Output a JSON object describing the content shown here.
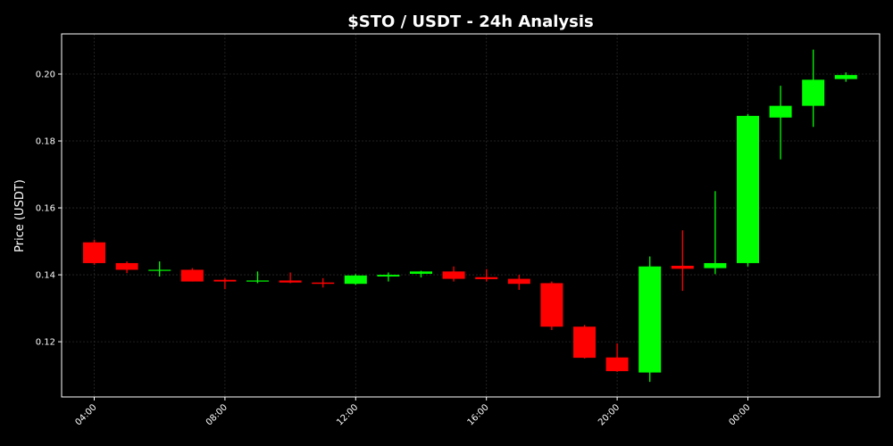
{
  "chart_data": {
    "type": "candlestick",
    "title": "$STO / USDT - 24h Analysis",
    "ylabel": "Price (USDT)",
    "xlabel": "",
    "grid": true,
    "ylim": [
      0.1035,
      0.212
    ],
    "y_ticks": [
      0.12,
      0.14,
      0.16,
      0.18,
      0.2
    ],
    "y_tick_labels": [
      "0.12",
      "0.14",
      "0.16",
      "0.18",
      "0.20"
    ],
    "x_ticks": [
      0,
      4,
      8,
      12,
      16,
      20
    ],
    "x_tick_labels": [
      "04:00",
      "08:00",
      "12:00",
      "16:00",
      "20:00",
      "00:00"
    ],
    "up_color": "#00ff00",
    "down_color": "#ff0000",
    "candles": [
      {
        "time": "04:00",
        "open": 0.1497,
        "high": 0.1505,
        "low": 0.143,
        "close": 0.1435
      },
      {
        "time": "05:00",
        "open": 0.1435,
        "high": 0.144,
        "low": 0.1405,
        "close": 0.1415
      },
      {
        "time": "06:00",
        "open": 0.1412,
        "high": 0.144,
        "low": 0.1395,
        "close": 0.1415
      },
      {
        "time": "07:00",
        "open": 0.1415,
        "high": 0.142,
        "low": 0.138,
        "close": 0.138
      },
      {
        "time": "08:00",
        "open": 0.1385,
        "high": 0.139,
        "low": 0.1357,
        "close": 0.138
      },
      {
        "time": "09:00",
        "open": 0.138,
        "high": 0.141,
        "low": 0.1375,
        "close": 0.1383
      },
      {
        "time": "10:00",
        "open": 0.1383,
        "high": 0.1407,
        "low": 0.1375,
        "close": 0.1377
      },
      {
        "time": "11:00",
        "open": 0.1377,
        "high": 0.139,
        "low": 0.1362,
        "close": 0.1373
      },
      {
        "time": "12:00",
        "open": 0.1373,
        "high": 0.1402,
        "low": 0.137,
        "close": 0.1398
      },
      {
        "time": "13:00",
        "open": 0.1395,
        "high": 0.1407,
        "low": 0.138,
        "close": 0.14
      },
      {
        "time": "14:00",
        "open": 0.1403,
        "high": 0.1412,
        "low": 0.1392,
        "close": 0.141
      },
      {
        "time": "15:00",
        "open": 0.141,
        "high": 0.1425,
        "low": 0.138,
        "close": 0.1388
      },
      {
        "time": "16:00",
        "open": 0.1393,
        "high": 0.1417,
        "low": 0.138,
        "close": 0.1387
      },
      {
        "time": "17:00",
        "open": 0.1388,
        "high": 0.14,
        "low": 0.1355,
        "close": 0.1373
      },
      {
        "time": "18:00",
        "open": 0.1375,
        "high": 0.138,
        "low": 0.1235,
        "close": 0.1245
      },
      {
        "time": "19:00",
        "open": 0.1245,
        "high": 0.125,
        "low": 0.115,
        "close": 0.1152
      },
      {
        "time": "20:00",
        "open": 0.1153,
        "high": 0.1195,
        "low": 0.111,
        "close": 0.1112
      },
      {
        "time": "21:00",
        "open": 0.1108,
        "high": 0.1455,
        "low": 0.108,
        "close": 0.1425
      },
      {
        "time": "22:00",
        "open": 0.1427,
        "high": 0.1533,
        "low": 0.1352,
        "close": 0.1418
      },
      {
        "time": "23:00",
        "open": 0.142,
        "high": 0.165,
        "low": 0.1402,
        "close": 0.1435
      },
      {
        "time": "00:00",
        "open": 0.1435,
        "high": 0.188,
        "low": 0.1425,
        "close": 0.1875
      },
      {
        "time": "01:00",
        "open": 0.187,
        "high": 0.1965,
        "low": 0.1745,
        "close": 0.1905
      },
      {
        "time": "02:00",
        "open": 0.1905,
        "high": 0.2073,
        "low": 0.1842,
        "close": 0.1983
      },
      {
        "time": "03:00",
        "open": 0.1985,
        "high": 0.2005,
        "low": 0.1977,
        "close": 0.1997
      }
    ]
  }
}
